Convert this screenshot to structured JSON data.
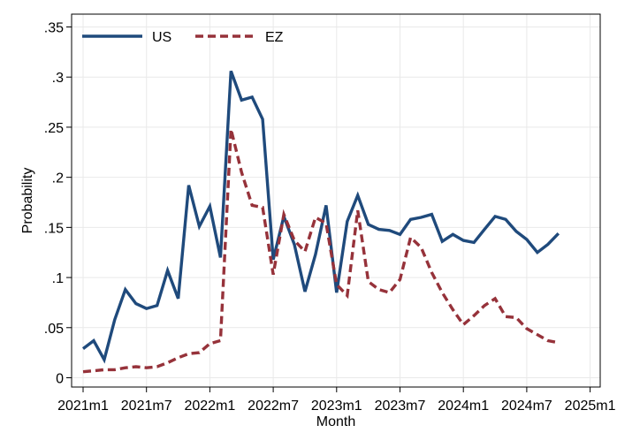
{
  "chart_data": {
    "type": "line",
    "xlabel": "Month",
    "ylabel": "Probability",
    "x_ticks": [
      "2021m1",
      "2021m7",
      "2022m1",
      "2022m7",
      "2023m1",
      "2023m7",
      "2024m1",
      "2024m7",
      "2025m1"
    ],
    "y_ticks": [
      "0",
      ".05",
      ".1",
      ".15",
      ".2",
      ".25",
      ".3",
      ".35"
    ],
    "ylim": [
      0,
      0.35
    ],
    "xlim": [
      "2021m1",
      "2025m1"
    ],
    "grid": true,
    "legend": "top-left",
    "series": [
      {
        "name": "US",
        "color": "#1f4a7c",
        "style": "solid",
        "x": [
          "2021m1",
          "2021m2",
          "2021m3",
          "2021m4",
          "2021m5",
          "2021m6",
          "2021m7",
          "2021m8",
          "2021m9",
          "2021m10",
          "2021m11",
          "2021m12",
          "2022m1",
          "2022m2",
          "2022m3",
          "2022m4",
          "2022m5",
          "2022m6",
          "2022m7",
          "2022m8",
          "2022m9",
          "2022m10",
          "2022m11",
          "2022m12",
          "2023m1",
          "2023m2",
          "2023m3",
          "2023m4",
          "2023m5",
          "2023m6",
          "2023m7",
          "2023m8",
          "2023m9",
          "2023m10",
          "2023m11",
          "2023m12",
          "2024m1",
          "2024m2",
          "2024m3",
          "2024m4",
          "2024m5",
          "2024m6",
          "2024m7",
          "2024m8",
          "2024m9",
          "2024m10"
        ],
        "values": [
          0.029,
          0.037,
          0.018,
          0.058,
          0.088,
          0.074,
          0.069,
          0.072,
          0.107,
          0.079,
          0.192,
          0.151,
          0.171,
          0.12,
          0.306,
          0.277,
          0.28,
          0.258,
          0.118,
          0.161,
          0.133,
          0.086,
          0.123,
          0.172,
          0.085,
          0.156,
          0.182,
          0.153,
          0.148,
          0.147,
          0.143,
          0.158,
          0.16,
          0.163,
          0.136,
          0.143,
          0.137,
          0.135,
          0.148,
          0.161,
          0.158,
          0.146,
          0.138,
          0.125,
          0.133,
          0.144
        ]
      },
      {
        "name": "EZ",
        "color": "#96323a",
        "style": "dashed",
        "x": [
          "2021m1",
          "2021m2",
          "2021m3",
          "2021m4",
          "2021m5",
          "2021m6",
          "2021m7",
          "2021m8",
          "2021m9",
          "2021m10",
          "2021m11",
          "2021m12",
          "2022m1",
          "2022m2",
          "2022m3",
          "2022m4",
          "2022m5",
          "2022m6",
          "2022m7",
          "2022m8",
          "2022m9",
          "2022m10",
          "2022m11",
          "2022m12",
          "2023m1",
          "2023m2",
          "2023m3",
          "2023m4",
          "2023m5",
          "2023m6",
          "2023m7",
          "2023m8",
          "2023m9",
          "2023m10",
          "2023m11",
          "2023m12",
          "2024m1",
          "2024m2",
          "2024m3",
          "2024m4",
          "2024m5",
          "2024m6",
          "2024m7",
          "2024m8",
          "2024m9",
          "2024m10"
        ],
        "values": [
          0.006,
          0.007,
          0.008,
          0.008,
          0.01,
          0.011,
          0.01,
          0.011,
          0.015,
          0.02,
          0.024,
          0.025,
          0.034,
          0.037,
          0.248,
          0.205,
          0.172,
          0.17,
          0.103,
          0.163,
          0.137,
          0.126,
          0.16,
          0.154,
          0.093,
          0.082,
          0.167,
          0.096,
          0.088,
          0.085,
          0.098,
          0.14,
          0.13,
          0.105,
          0.085,
          0.068,
          0.053,
          0.062,
          0.072,
          0.079,
          0.061,
          0.06,
          0.049,
          0.043,
          0.037,
          0.035
        ]
      }
    ]
  }
}
